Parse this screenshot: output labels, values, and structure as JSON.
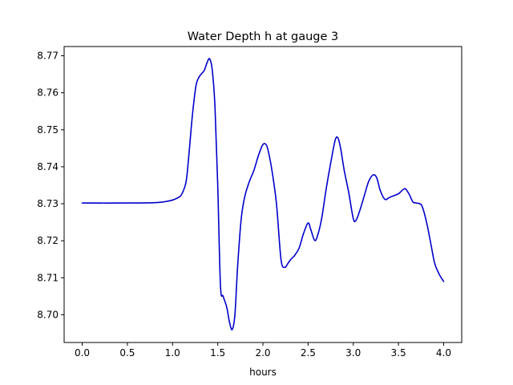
{
  "chart_data": {
    "type": "line",
    "title": "Water Depth h at gauge 3",
    "xlabel": "hours",
    "ylabel": "",
    "xlim": [
      -0.2,
      4.2
    ],
    "ylim": [
      8.6925,
      8.7725
    ],
    "xticks": [
      {
        "value": 0.0,
        "label": "0.0"
      },
      {
        "value": 0.5,
        "label": "0.5"
      },
      {
        "value": 1.0,
        "label": "1.0"
      },
      {
        "value": 1.5,
        "label": "1.5"
      },
      {
        "value": 2.0,
        "label": "2.0"
      },
      {
        "value": 2.5,
        "label": "2.5"
      },
      {
        "value": 3.0,
        "label": "3.0"
      },
      {
        "value": 3.5,
        "label": "3.5"
      },
      {
        "value": 4.0,
        "label": "4.0"
      }
    ],
    "yticks": [
      {
        "value": 8.7,
        "label": "8.70"
      },
      {
        "value": 8.71,
        "label": "8.71"
      },
      {
        "value": 8.72,
        "label": "8.72"
      },
      {
        "value": 8.73,
        "label": "8.73"
      },
      {
        "value": 8.74,
        "label": "8.74"
      },
      {
        "value": 8.75,
        "label": "8.75"
      },
      {
        "value": 8.76,
        "label": "8.76"
      },
      {
        "value": 8.77,
        "label": "8.77"
      }
    ],
    "grid": false,
    "series": [
      {
        "color": "#0000cc",
        "x": [
          0.0,
          0.5,
          0.8,
          0.9,
          1.0,
          1.05,
          1.1,
          1.15,
          1.18,
          1.22,
          1.26,
          1.3,
          1.35,
          1.38,
          1.41,
          1.44,
          1.47,
          1.5,
          1.53,
          1.56,
          1.6,
          1.63,
          1.66,
          1.69,
          1.72,
          1.76,
          1.8,
          1.85,
          1.9,
          1.95,
          2.0,
          2.04,
          2.07,
          2.1,
          2.15,
          2.2,
          2.24,
          2.28,
          2.31,
          2.35,
          2.4,
          2.45,
          2.5,
          2.53,
          2.57,
          2.6,
          2.65,
          2.7,
          2.75,
          2.8,
          2.83,
          2.86,
          2.9,
          2.95,
          3.0,
          3.03,
          3.07,
          3.12,
          3.17,
          3.22,
          3.26,
          3.3,
          3.35,
          3.4,
          3.45,
          3.5,
          3.55,
          3.58,
          3.62,
          3.66,
          3.7,
          3.75,
          3.78,
          3.82,
          3.86,
          3.9,
          3.95,
          4.0
        ],
        "y": [
          8.7302,
          8.7302,
          8.7303,
          8.7305,
          8.731,
          8.7315,
          8.7325,
          8.736,
          8.743,
          8.754,
          8.762,
          8.7645,
          8.766,
          8.768,
          8.7692,
          8.766,
          8.756,
          8.735,
          8.708,
          8.705,
          8.702,
          8.698,
          8.696,
          8.7,
          8.713,
          8.726,
          8.732,
          8.736,
          8.739,
          8.743,
          8.746,
          8.7458,
          8.743,
          8.739,
          8.73,
          8.715,
          8.7128,
          8.714,
          8.715,
          8.716,
          8.718,
          8.722,
          8.7248,
          8.723,
          8.7202,
          8.721,
          8.726,
          8.734,
          8.741,
          8.7472,
          8.7478,
          8.745,
          8.739,
          8.733,
          8.726,
          8.7255,
          8.728,
          8.732,
          8.736,
          8.7378,
          8.737,
          8.7335,
          8.7312,
          8.7317,
          8.7322,
          8.7327,
          8.7338,
          8.734,
          8.7325,
          8.7305,
          8.7302,
          8.7298,
          8.728,
          8.724,
          8.719,
          8.714,
          8.711,
          8.709
        ]
      }
    ]
  }
}
